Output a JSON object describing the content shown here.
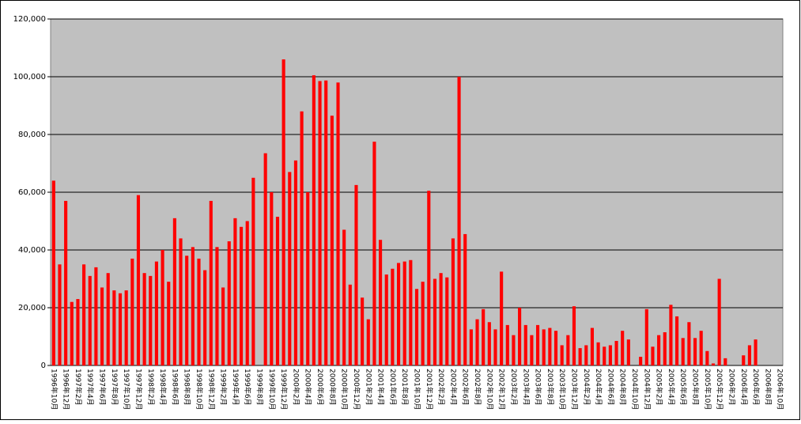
{
  "chart_data": {
    "type": "bar",
    "color": "#ff0000",
    "grid": true,
    "categories": [
      "1996年10月",
      null,
      "1996年12月",
      null,
      "1997年2月",
      null,
      "1997年4月",
      null,
      "1997年6月",
      null,
      "1997年8月",
      null,
      "1997年10月",
      null,
      "1997年12月",
      null,
      "1998年2月",
      null,
      "1998年4月",
      null,
      "1998年6月",
      null,
      "1998年8月",
      null,
      "1998年10月",
      null,
      "1998年12月",
      null,
      "1999年2月",
      null,
      "1999年4月",
      null,
      "1999年6月",
      null,
      "1999年8月",
      null,
      "1999年10月",
      null,
      "1999年12月",
      null,
      "2000年2月",
      null,
      "2000年4月",
      null,
      "2000年6月",
      null,
      "2000年8月",
      null,
      "2000年10月",
      null,
      "2000年12月",
      null,
      "2001年2月",
      null,
      "2001年4月",
      null,
      "2001年6月",
      null,
      "2001年8月",
      null,
      "2001年10月",
      null,
      "2001年12月",
      null,
      "2002年2月",
      null,
      "2002年4月",
      null,
      "2002年6月",
      null,
      "2002年8月",
      null,
      "2002年10月",
      null,
      "2002年12月",
      null,
      "2003年2月",
      null,
      "2003年4月",
      null,
      "2003年6月",
      null,
      "2003年8月",
      null,
      "2003年10月",
      null,
      "2003年12月",
      null,
      "2004年2月",
      null,
      "2004年4月",
      null,
      "2004年6月",
      null,
      "2004年8月",
      null,
      "2004年10月",
      null,
      "2004年12月",
      null,
      "2005年2月",
      null,
      "2005年4月",
      null,
      "2005年6月",
      null,
      "2005年8月",
      null,
      "2005年10月",
      null,
      "2005年12月",
      null,
      "2006年2月",
      null,
      "2006年4月",
      null,
      "2006年6月",
      null,
      "2006年8月",
      null,
      "2006年10月"
    ],
    "values": [
      64000,
      35000,
      57000,
      22000,
      23000,
      35000,
      31000,
      34000,
      27000,
      32000,
      26000,
      25000,
      26000,
      37000,
      59000,
      32000,
      31000,
      36000,
      40000,
      29000,
      51000,
      44000,
      38000,
      41000,
      37000,
      33000,
      57000,
      41000,
      27000,
      43000,
      51000,
      48000,
      50000,
      65000,
      0,
      73500,
      60000,
      51500,
      106000,
      67000,
      71000,
      88000,
      60000,
      100500,
      98500,
      98700,
      86500,
      98000,
      47000,
      28000,
      62500,
      23500,
      16000,
      77500,
      43500,
      31500,
      33500,
      35500,
      36000,
      36500,
      26500,
      29000,
      60500,
      30000,
      32000,
      30500,
      44000,
      100000,
      45500,
      12500,
      16000,
      19500,
      15000,
      12500,
      32500,
      14000,
      10500,
      20000,
      14000,
      10500,
      14000,
      12500,
      13000,
      12000,
      7000,
      10500,
      20500,
      6000,
      7000,
      13000,
      8000,
      6500,
      7000,
      8500,
      12000,
      9000,
      0,
      3000,
      19500,
      6500,
      10500,
      11500,
      21000,
      17000,
      9500,
      15000,
      9500,
      12000,
      5000,
      700,
      30000,
      2500,
      0,
      0,
      3500,
      7000,
      9000,
      0,
      0,
      0,
      0
    ],
    "ylim": [
      0,
      120000
    ],
    "yticks": [
      0,
      {
        "value": 20000,
        "label": "20,000"
      },
      {
        "value": 40000,
        "label": "40,000"
      },
      {
        "value": 60000,
        "label": "60,000"
      },
      {
        "value": 80000,
        "label": "80,000"
      },
      {
        "value": 100000,
        "label": "100,000"
      },
      {
        "value": 120000,
        "label": "120,000"
      }
    ]
  }
}
